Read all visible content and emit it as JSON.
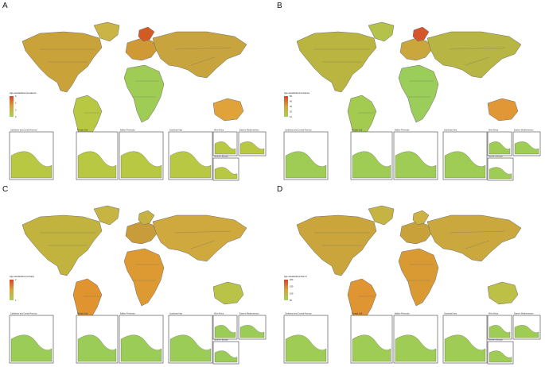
{
  "panels": [
    {
      "letter": "A",
      "legend_title": "Age-standardized prevalence",
      "ticks": [
        "9",
        "6",
        "3",
        "0"
      ],
      "insets": [
        "Caribbean and Central America",
        "Persian Gulf",
        "Balkan Peninsula",
        "Southeast Asia",
        "West Africa",
        "Eastern Mediterranean",
        "Northern Europe"
      ],
      "colors": {
        "north_america": "#c9a33a",
        "south_america": "#b9c843",
        "africa": "#9fcc55",
        "europe": "#cf9a35",
        "asia": "#c8a43e",
        "australia": "#e0a339",
        "greenland": "#c9b445",
        "scandinavia": "#d25b24",
        "inset_fill": "#b9c843"
      }
    },
    {
      "letter": "B",
      "legend_title": "Age-standardized incidence",
      "ticks": [
        "50",
        "40",
        "30",
        "20",
        "10"
      ],
      "insets": [
        "Caribbean and Central America",
        "Persian Gulf",
        "Balkan Peninsula",
        "Southeast Asia",
        "West Africa",
        "Eastern Mediterranean",
        "Northern Europe"
      ],
      "colors": {
        "north_america": "#b9b540",
        "south_america": "#a3cb50",
        "africa": "#9acd5a",
        "europe": "#c9a73d",
        "asia": "#b7b543",
        "australia": "#e19736",
        "greenland": "#b4c24a",
        "scandinavia": "#d5562a",
        "inset_fill": "#9fcc55"
      }
    },
    {
      "letter": "C",
      "legend_title": "Age-standardized mortality",
      "ticks": [
        "2",
        "1"
      ],
      "insets": [
        "Caribbean and Central America",
        "Persian Gulf",
        "Balkan Peninsula",
        "Southeast Asia",
        "West Africa",
        "Eastern Mediterranean",
        "Northern Europe"
      ],
      "colors": {
        "north_america": "#c2b33f",
        "south_america": "#e0932f",
        "africa": "#dd9a32",
        "europe": "#c89c3a",
        "asia": "#cfa93d",
        "australia": "#b8c347",
        "greenland": "#c6b443",
        "scandinavia": "#c7b143",
        "inset_fill": "#9ccc58"
      }
    },
    {
      "letter": "D",
      "legend_title": "Age-standardized DALYs",
      "ticks": [
        "200",
        "150",
        "100",
        "50"
      ],
      "insets": [
        "Caribbean and Central America",
        "Persian Gulf",
        "Balkan Peninsula",
        "Southeast Asia",
        "West Africa",
        "Eastern Mediterranean",
        "Northern Europe"
      ],
      "colors": {
        "north_america": "#c9a53b",
        "south_america": "#df9531",
        "africa": "#d99a34",
        "europe": "#c9a13b",
        "asia": "#caa83e",
        "australia": "#bcc046",
        "greenland": "#c5b444",
        "scandinavia": "#cdb243",
        "inset_fill": "#9fcc55"
      }
    }
  ]
}
